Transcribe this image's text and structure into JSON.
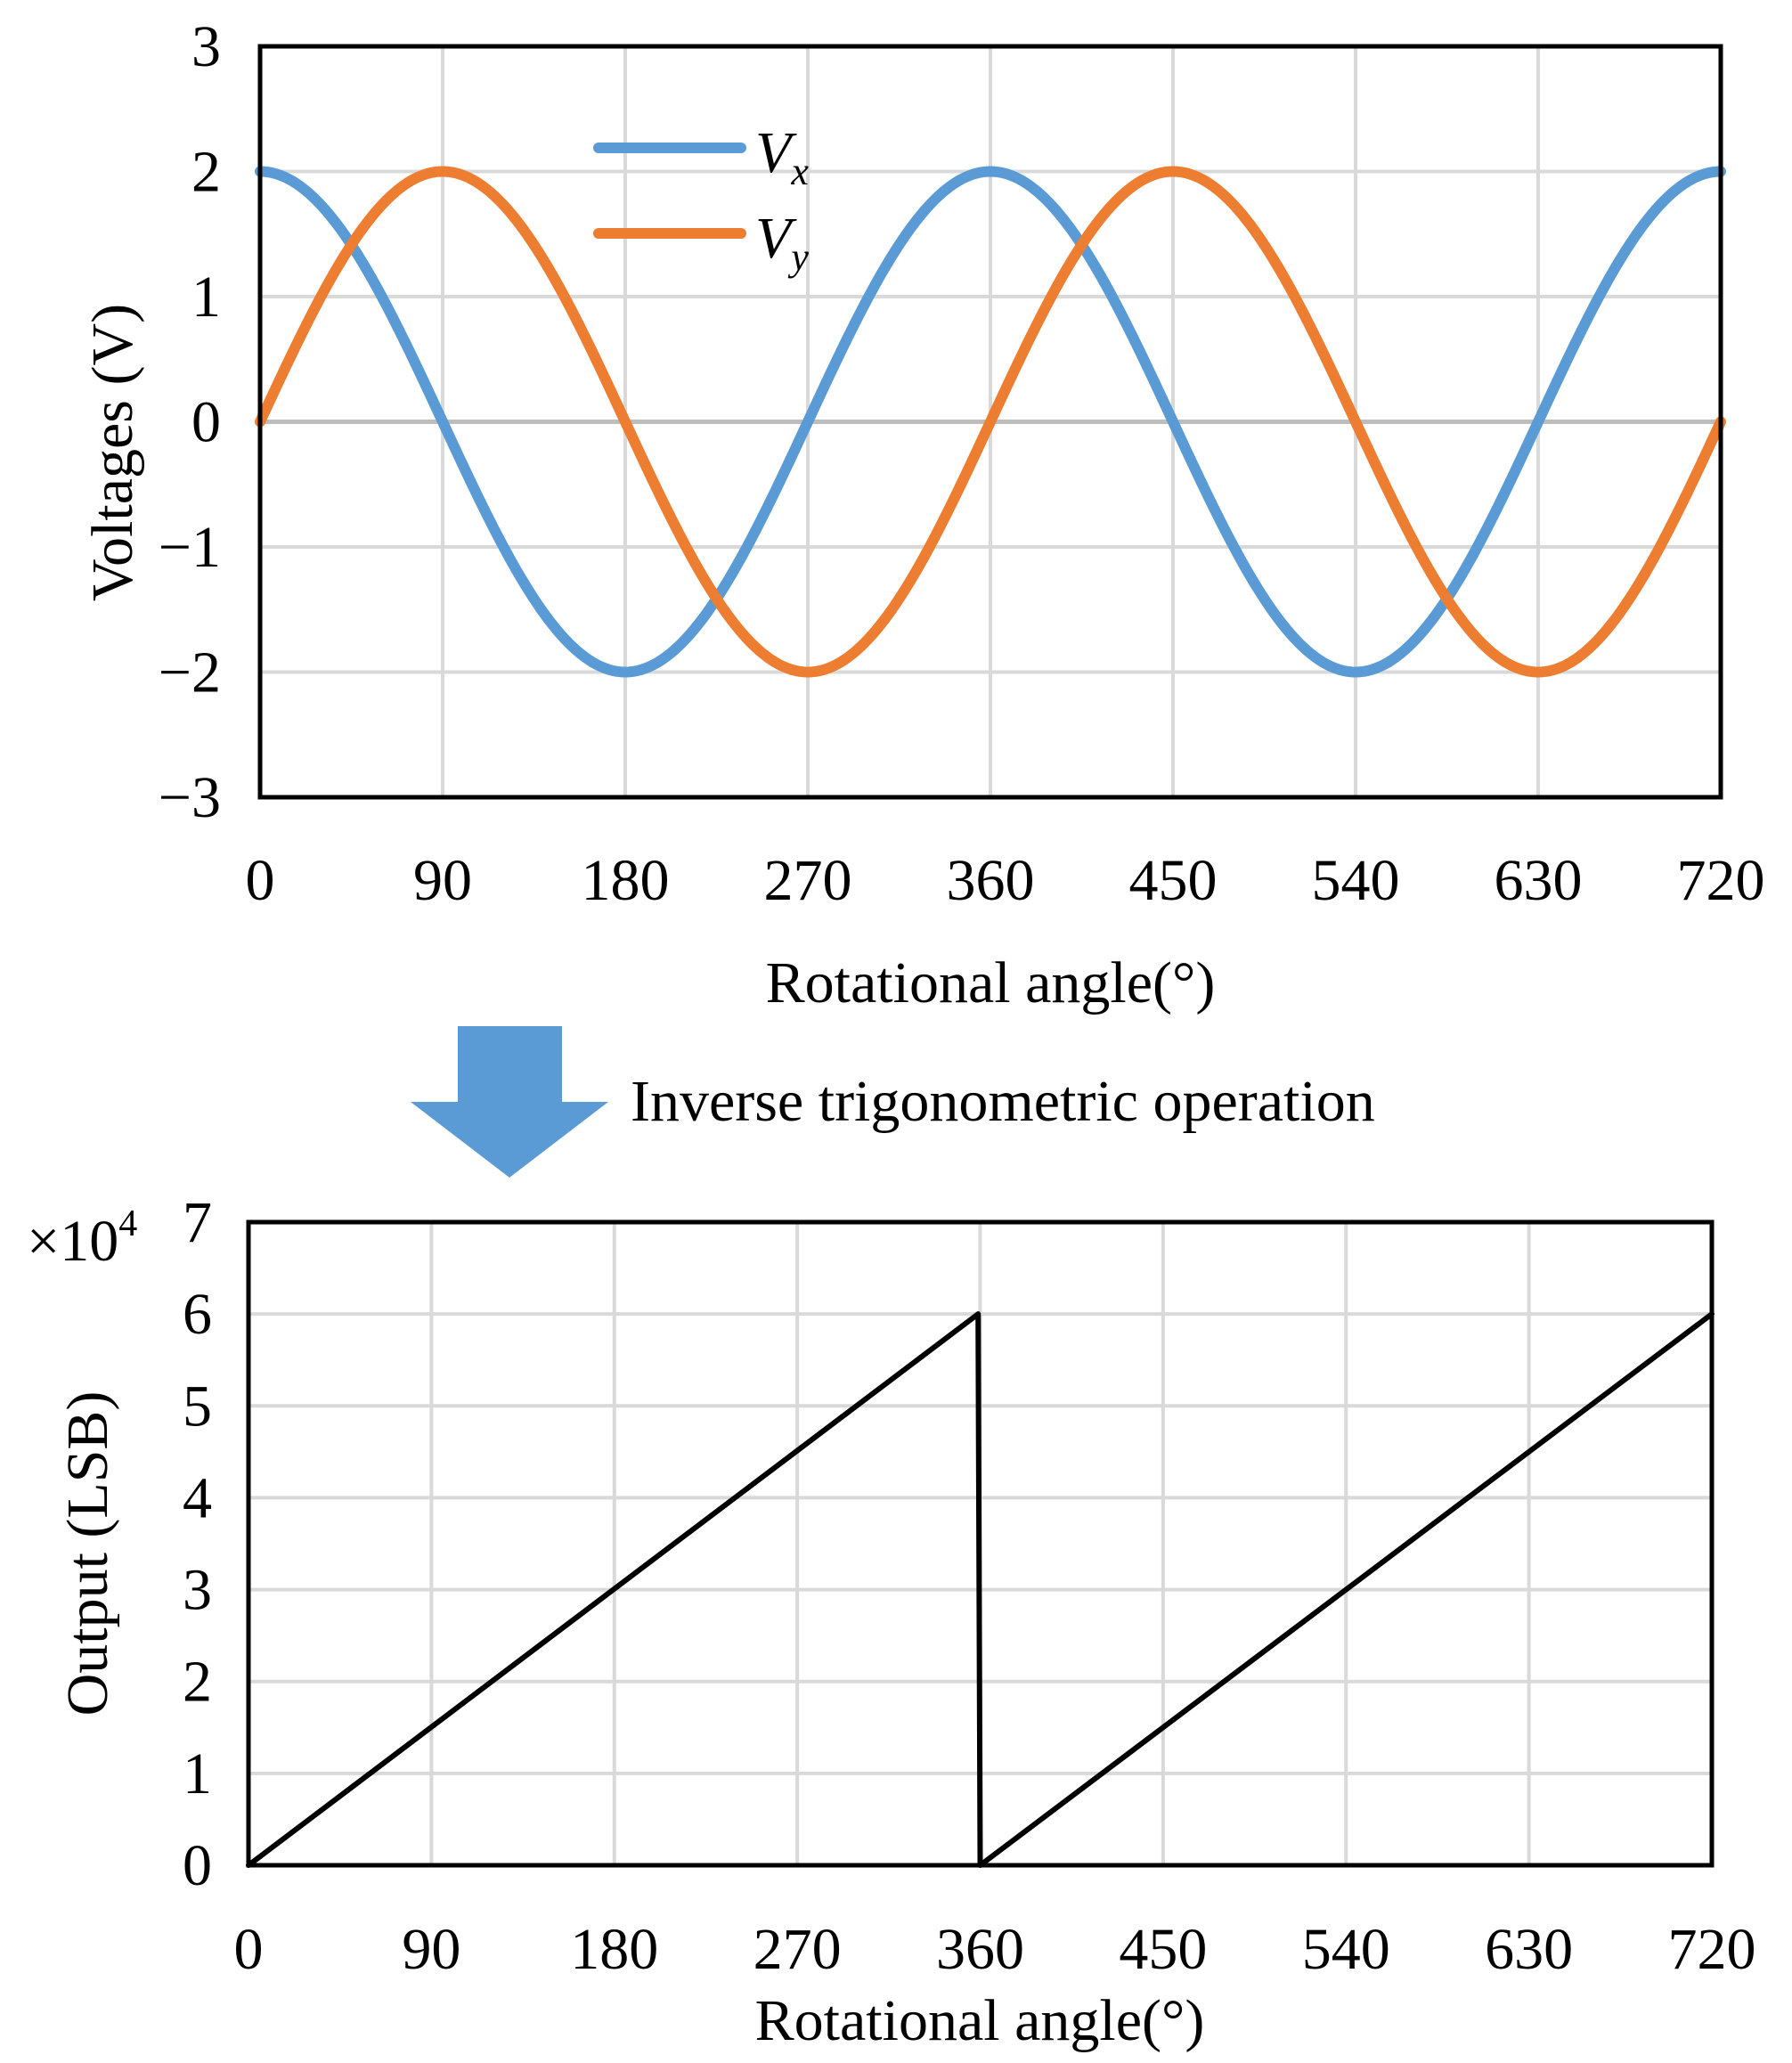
{
  "chart_data": [
    {
      "type": "line",
      "title": "",
      "xlabel": "Rotational angle(°)",
      "ylabel": "Voltages  (V)",
      "xlim": [
        0,
        720
      ],
      "ylim": [
        -3,
        3
      ],
      "x_ticks": [
        0,
        90,
        180,
        270,
        360,
        450,
        540,
        630,
        720
      ],
      "x_tick_labels": [
        "0",
        "90",
        "180",
        "270",
        "360",
        "450",
        "540",
        "630",
        "720"
      ],
      "y_ticks": [
        -3,
        -2,
        -1,
        0,
        1,
        2,
        3
      ],
      "y_tick_labels": [
        "−3",
        "−2",
        "−1",
        "0",
        "1",
        "2",
        "3"
      ],
      "grid": true,
      "legend_position": "top-center",
      "series": [
        {
          "name": "Vx",
          "label_main": "V",
          "label_sub": "x",
          "color": "#5B9BD5",
          "amplitude": 2,
          "function": "cos",
          "x": [
            0,
            90,
            180,
            270,
            360,
            450,
            540,
            630,
            720
          ],
          "values": [
            2,
            0,
            -2,
            0,
            2,
            0,
            -2,
            0,
            2
          ]
        },
        {
          "name": "Vy",
          "label_main": "V",
          "label_sub": "y",
          "color": "#ED7D31",
          "amplitude": 2,
          "function": "sin",
          "x": [
            0,
            90,
            180,
            270,
            360,
            450,
            540,
            630,
            720
          ],
          "values": [
            0,
            2,
            0,
            -2,
            0,
            2,
            0,
            -2,
            0
          ]
        }
      ]
    },
    {
      "type": "line",
      "title": "",
      "xlabel": "Rotational angle(°)",
      "ylabel": "Output (LSB)",
      "multiplier_main": "×10",
      "multiplier_exp": "4",
      "xlim": [
        0,
        720
      ],
      "ylim": [
        0,
        7
      ],
      "x_ticks": [
        0,
        90,
        180,
        270,
        360,
        450,
        540,
        630,
        720
      ],
      "x_tick_labels": [
        "0",
        "90",
        "180",
        "270",
        "360",
        "450",
        "540",
        "630",
        "720"
      ],
      "y_ticks": [
        0,
        1,
        2,
        3,
        4,
        5,
        6,
        7
      ],
      "y_tick_labels": [
        "0",
        "1",
        "2",
        "3",
        "4",
        "5",
        "6",
        "7"
      ],
      "grid": true,
      "series": [
        {
          "name": "Output",
          "color": "#000000",
          "x": [
            0,
            359,
            360,
            720
          ],
          "values": [
            0,
            6,
            0,
            6
          ]
        }
      ]
    }
  ],
  "annotation": {
    "text": "Inverse trigonometric  operation",
    "arrow_color": "#5B9BD5"
  }
}
